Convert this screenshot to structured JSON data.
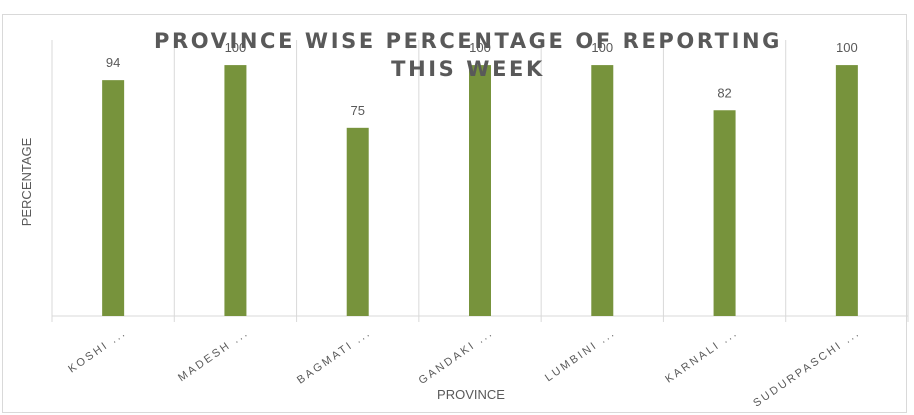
{
  "chart_data": {
    "type": "bar",
    "title_lines": [
      "PROVINCE WISE PERCENTAGE OF REPORTING",
      "THIS WEEK"
    ],
    "xlabel": "PROVINCE",
    "ylabel": "PERCENTAGE",
    "categories": [
      "KOSHI ...",
      "MADESH ...",
      "BAGMATI ...",
      "GANDAKI ...",
      "LUMBINI ...",
      "KARNALI ...",
      "SUDURPASCHI ..."
    ],
    "values": [
      94,
      100,
      75,
      100,
      100,
      82,
      100
    ],
    "value_labels": [
      "94",
      "100",
      "75",
      "100",
      "100",
      "82",
      "100"
    ],
    "ylim": [
      0,
      110
    ],
    "grid": "vertical",
    "legend": "none",
    "colors": {
      "bar": "#77933c",
      "text": "#595959",
      "grid": "#d9d9d9"
    }
  }
}
